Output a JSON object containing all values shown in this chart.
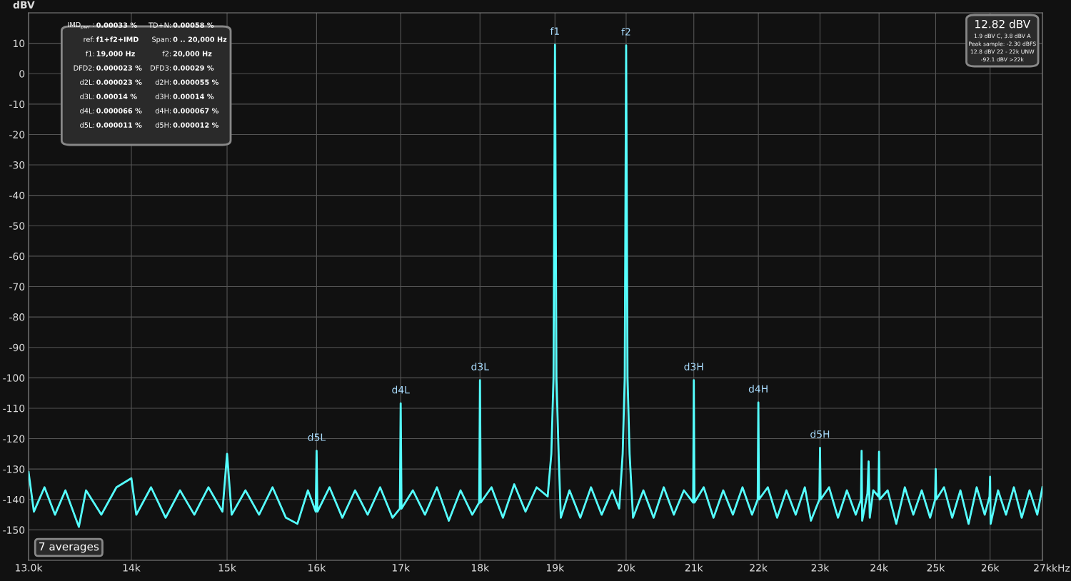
{
  "chart_data": {
    "type": "line",
    "ylabel": "dBV",
    "x": [
      13000,
      13050,
      13150,
      13250,
      13350,
      13480,
      13550,
      13700,
      13850,
      14000,
      14050,
      14200,
      14350,
      14500,
      14650,
      14800,
      14950,
      15000,
      15050,
      15200,
      15350,
      15500,
      15650,
      15780,
      15900,
      15990,
      16000,
      16010,
      16150,
      16300,
      16450,
      16600,
      16750,
      16900,
      16990,
      17000,
      17010,
      17150,
      17300,
      17450,
      17600,
      17750,
      17900,
      17990,
      18000,
      18010,
      18150,
      18300,
      18450,
      18600,
      18750,
      18900,
      18950,
      18980,
      19000,
      19020,
      19050,
      19080,
      19200,
      19350,
      19500,
      19650,
      19800,
      19900,
      19950,
      19980,
      20000,
      20020,
      20050,
      20100,
      20250,
      20400,
      20550,
      20700,
      20850,
      20990,
      21000,
      21010,
      21150,
      21300,
      21450,
      21600,
      21750,
      21900,
      21990,
      22000,
      22010,
      22150,
      22300,
      22450,
      22600,
      22750,
      22850,
      22990,
      23000,
      23010,
      23150,
      23300,
      23450,
      23600,
      23690,
      23700,
      23710,
      23800,
      23820,
      23840,
      23900,
      23990,
      24000,
      24010,
      24150,
      24300,
      24450,
      24600,
      24750,
      24900,
      24990,
      25000,
      25010,
      25150,
      25300,
      25450,
      25600,
      25750,
      25900,
      25990,
      26000,
      26010,
      26150,
      26300,
      26450,
      26600,
      26750,
      26900,
      27000
    ],
    "series": [
      {
        "color": "#55ffff",
        "values": [
          -131,
          -144,
          -136,
          -145,
          -137,
          -149,
          -137,
          -145,
          -136,
          -133,
          -145,
          -136,
          -146,
          -137,
          -145,
          -136,
          -144,
          -125,
          -145,
          -137,
          -145,
          -136,
          -146,
          -148,
          -137,
          -144,
          -124,
          -144,
          -136,
          -146,
          -137,
          -145,
          -136,
          -146,
          -143,
          -108.4,
          -143,
          -137,
          -145,
          -136,
          -147,
          -137,
          -145,
          -141,
          -100.8,
          -141,
          -136,
          -146,
          -135,
          -144,
          -136,
          -139,
          -125,
          -100,
          9.5,
          -100,
          -125,
          -146,
          -137,
          -146,
          -136,
          -145,
          -137,
          -143,
          -125,
          -100,
          9.3,
          -100,
          -125,
          -146,
          -137,
          -146,
          -136,
          -145,
          -137,
          -141,
          -100.8,
          -141,
          -136,
          -146,
          -137,
          -145,
          -136,
          -145,
          -140,
          -108.1,
          -140,
          -136,
          -146,
          -137,
          -145,
          -136,
          -147,
          -140,
          -123,
          -140,
          -136,
          -146,
          -137,
          -145,
          -140,
          -124,
          -147,
          -138,
          -127.5,
          -146,
          -137,
          -139,
          -124.3,
          -140,
          -137,
          -148,
          -136,
          -145,
          -137,
          -146,
          -140,
          -130,
          -140,
          -136,
          -146,
          -137,
          -148,
          -136,
          -145,
          -139,
          -132.5,
          -148,
          -137,
          -145,
          -136,
          -146,
          -137,
          -145,
          -136
        ]
      }
    ],
    "log": "x",
    "xlim": [
      13000,
      27000
    ],
    "xticks": [
      {
        "value": 13000,
        "label": "13.0k"
      },
      {
        "value": 14000,
        "label": "14k"
      },
      {
        "value": 15000,
        "label": "15k"
      },
      {
        "value": 16000,
        "label": "16k"
      },
      {
        "value": 17000,
        "label": "17k"
      },
      {
        "value": 18000,
        "label": "18k"
      },
      {
        "value": 19000,
        "label": "19k"
      },
      {
        "value": 20000,
        "label": "20k"
      },
      {
        "value": 21000,
        "label": "21k"
      },
      {
        "value": 22000,
        "label": "22k"
      },
      {
        "value": 23000,
        "label": "23k"
      },
      {
        "value": 24000,
        "label": "24k"
      },
      {
        "value": 25000,
        "label": "25k"
      },
      {
        "value": 26000,
        "label": "26k"
      },
      {
        "value": 27000,
        "label": "27k"
      }
    ],
    "xlabel": "kHz",
    "ylim": [
      -160,
      20
    ],
    "yticks": [
      -150,
      -140,
      -130,
      -120,
      -110,
      -100,
      -90,
      -80,
      -70,
      -60,
      -50,
      -40,
      -30,
      -20,
      -10,
      0,
      10
    ],
    "grid": true,
    "annotations": [
      {
        "text": "f1",
        "x": 19000,
        "y": 9.5
      },
      {
        "text": "f2",
        "x": 20000,
        "y": 9.3
      },
      {
        "text": "d3L",
        "x": 18000,
        "y": -100.8
      },
      {
        "text": "d4L",
        "x": 17000,
        "y": -108.4
      },
      {
        "text": "d5L",
        "x": 16000,
        "y": -124
      },
      {
        "text": "d3H",
        "x": 21000,
        "y": -100.8
      },
      {
        "text": "d4H",
        "x": 22000,
        "y": -108.1
      },
      {
        "text": "d5H",
        "x": 23000,
        "y": -123
      },
      "IMD$_{pwr}$ : 0.00033 %",
      "TD+N: 0.00058 %",
      "ref: f1+f2+IMD",
      "Span: 0 .. 20,000 Hz",
      "f1: 19,000 Hz",
      "f2: 20,000 Hz",
      "DFD2: 0.000023 %",
      "DFD3: 0.00029 %",
      "d2L: 0.000023 %",
      "d2H: 0.000055 %",
      "d3L: 0.00014 %",
      "d3H: 0.00014 %",
      "d4L: 0.000066 %",
      "d4H: 0.000067 %",
      "d5L: 0.000011 %",
      "d5H: 0.000012 %",
      "12.82 dBV",
      "1.9 dBV C, 3.8 dBV A",
      "Peak sample: -2.30 dBFS",
      "12.8 dBV 22 - 22k UNW",
      "-92.1 dBV >22k",
      "7 averages"
    ]
  }
}
